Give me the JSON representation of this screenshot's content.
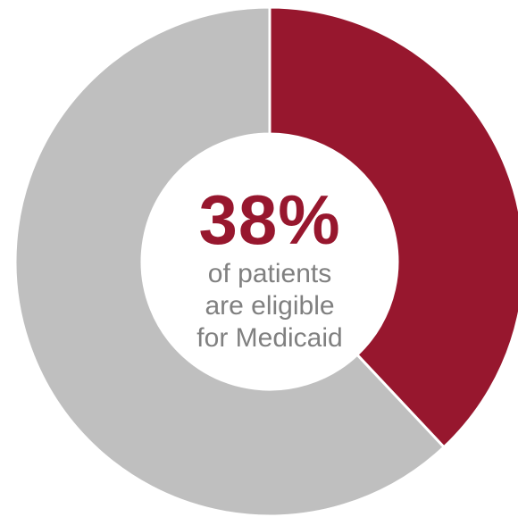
{
  "chart_data": {
    "type": "pie",
    "donut": true,
    "slices": [
      {
        "value": 38,
        "color": "#97172e"
      },
      {
        "value": 62,
        "color": "#bfbfbf"
      }
    ],
    "center_value": "38%",
    "center_caption": [
      "of patients",
      "are eligible",
      "for Medicaid"
    ]
  },
  "colors": {
    "accent": "#97172e",
    "remainder": "#bfbfbf",
    "caption": "#808080",
    "separator": "#ffffff"
  }
}
